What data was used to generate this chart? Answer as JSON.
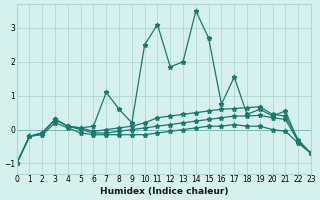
{
  "xlabel": "Humidex (Indice chaleur)",
  "background_color": "#d6f0ee",
  "grid_color": "#aed8d4",
  "line_color": "#1a7a6e",
  "xlim": [
    0,
    23
  ],
  "ylim": [
    -1.3,
    3.7
  ],
  "yticks": [
    -1,
    0,
    1,
    2,
    3
  ],
  "xticks": [
    0,
    1,
    2,
    3,
    4,
    5,
    6,
    7,
    8,
    9,
    10,
    11,
    12,
    13,
    14,
    15,
    16,
    17,
    18,
    19,
    20,
    21,
    22,
    23
  ],
  "series": [
    [
      0,
      1,
      2,
      3,
      4,
      5,
      6,
      7,
      8,
      9,
      10,
      11,
      12,
      13,
      14,
      15,
      16,
      17,
      18,
      19,
      20,
      21,
      22,
      23
    ],
    [
      -1.0,
      -0.2,
      -0.1,
      0.3,
      0.1,
      0.05,
      0.1,
      1.1,
      0.6,
      0.2,
      2.5,
      3.1,
      1.85,
      2.0,
      3.5,
      2.7,
      0.75,
      1.55,
      0.45,
      0.6,
      0.4,
      0.55,
      -0.35,
      -0.7
    ],
    [
      -1.0,
      -0.2,
      -0.1,
      0.3,
      0.1,
      0.05,
      -0.05,
      0.0,
      0.05,
      0.1,
      0.2,
      0.35,
      0.4,
      0.45,
      0.5,
      0.55,
      0.6,
      0.62,
      0.65,
      0.67,
      0.45,
      0.4,
      -0.3,
      -0.7
    ],
    [
      -1.0,
      -0.2,
      -0.1,
      0.3,
      0.1,
      0.0,
      -0.1,
      -0.1,
      -0.05,
      0.0,
      0.05,
      0.1,
      0.15,
      0.2,
      0.25,
      0.3,
      0.35,
      0.4,
      0.4,
      0.42,
      0.35,
      0.3,
      -0.35,
      -0.7
    ],
    [
      -1.0,
      -0.2,
      -0.15,
      0.2,
      0.05,
      -0.1,
      -0.15,
      -0.15,
      -0.15,
      -0.15,
      -0.15,
      -0.1,
      -0.05,
      0.0,
      0.05,
      0.1,
      0.1,
      0.15,
      0.1,
      0.1,
      0.0,
      -0.05,
      -0.4,
      -0.7
    ]
  ]
}
